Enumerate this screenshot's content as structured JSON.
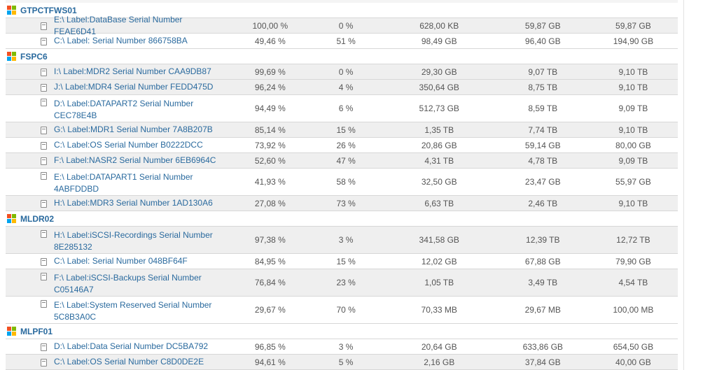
{
  "groups": [
    {
      "name": "GTPCTFWS01",
      "volumes": [
        {
          "label": "E:\\ Label:DataBase Serial Number FEAE6D41",
          "used_pct": "100,00 %",
          "free_pct": "0 %",
          "used": "628,00 KB",
          "free": "59,87 GB",
          "total": "59,87 GB"
        },
        {
          "label": "C:\\ Label: Serial Number 866758BA",
          "used_pct": "49,46 %",
          "free_pct": "51 %",
          "used": "98,49 GB",
          "free": "96,40 GB",
          "total": "194,90 GB"
        }
      ]
    },
    {
      "name": "FSPC6",
      "volumes": [
        {
          "label": "I:\\ Label:MDR2 Serial Number CAA9DB87",
          "used_pct": "99,69 %",
          "free_pct": "0 %",
          "used": "29,30 GB",
          "free": "9,07 TB",
          "total": "9,10 TB"
        },
        {
          "label": "J:\\ Label:MDR4 Serial Number FEDD475D",
          "used_pct": "96,24 %",
          "free_pct": "4 %",
          "used": "350,64 GB",
          "free": "8,75 TB",
          "total": "9,10 TB"
        },
        {
          "label": "D:\\ Label:DATAPART2 Serial Number CEC78E4B",
          "used_pct": "94,49 %",
          "free_pct": "6 %",
          "used": "512,73 GB",
          "free": "8,59 TB",
          "total": "9,09 TB"
        },
        {
          "label": "G:\\ Label:MDR1 Serial Number 7A8B207B",
          "used_pct": "85,14 %",
          "free_pct": "15 %",
          "used": "1,35 TB",
          "free": "7,74 TB",
          "total": "9,10 TB"
        },
        {
          "label": "C:\\ Label:OS Serial Number B0222DCC",
          "used_pct": "73,92 %",
          "free_pct": "26 %",
          "used": "20,86 GB",
          "free": "59,14 GB",
          "total": "80,00 GB"
        },
        {
          "label": "F:\\ Label:NASR2 Serial Number 6EB6964C",
          "used_pct": "52,60 %",
          "free_pct": "47 %",
          "used": "4,31 TB",
          "free": "4,78 TB",
          "total": "9,09 TB"
        },
        {
          "label": "E:\\ Label:DATAPART1 Serial Number 4ABFDDBD",
          "used_pct": "41,93 %",
          "free_pct": "58 %",
          "used": "32,50 GB",
          "free": "23,47 GB",
          "total": "55,97 GB"
        },
        {
          "label": "H:\\ Label:MDR3 Serial Number 1AD130A6",
          "used_pct": "27,08 %",
          "free_pct": "73 %",
          "used": "6,63 TB",
          "free": "2,46 TB",
          "total": "9,10 TB"
        }
      ]
    },
    {
      "name": "MLDR02",
      "volumes": [
        {
          "label": "H:\\ Label:iSCSI-Recordings Serial Number 8E285132",
          "used_pct": "97,38 %",
          "free_pct": "3 %",
          "used": "341,58 GB",
          "free": "12,39 TB",
          "total": "12,72 TB"
        },
        {
          "label": "C:\\ Label: Serial Number 048BF64F",
          "used_pct": "84,95 %",
          "free_pct": "15 %",
          "used": "12,02 GB",
          "free": "67,88 GB",
          "total": "79,90 GB"
        },
        {
          "label": "F:\\ Label:iSCSI-Backups Serial Number C05146A7",
          "used_pct": "76,84 %",
          "free_pct": "23 %",
          "used": "1,05 TB",
          "free": "3,49 TB",
          "total": "4,54 TB"
        },
        {
          "label": "E:\\ Label:System Reserved Serial Number 5C8B3A0C",
          "used_pct": "29,67 %",
          "free_pct": "70 %",
          "used": "70,33 MB",
          "free": "29,67 MB",
          "total": "100,00 MB"
        }
      ]
    },
    {
      "name": "MLPF01",
      "volumes": [
        {
          "label": "D:\\ Label:Data Serial Number DC5BA792",
          "used_pct": "96,85 %",
          "free_pct": "3 %",
          "used": "20,64 GB",
          "free": "633,86 GB",
          "total": "654,50 GB"
        },
        {
          "label": "C:\\ Label:OS Serial Number C8D0DE2E",
          "used_pct": "94,61 %",
          "free_pct": "5 %",
          "used": "2,16 GB",
          "free": "37,84 GB",
          "total": "40,00 GB"
        }
      ]
    }
  ]
}
